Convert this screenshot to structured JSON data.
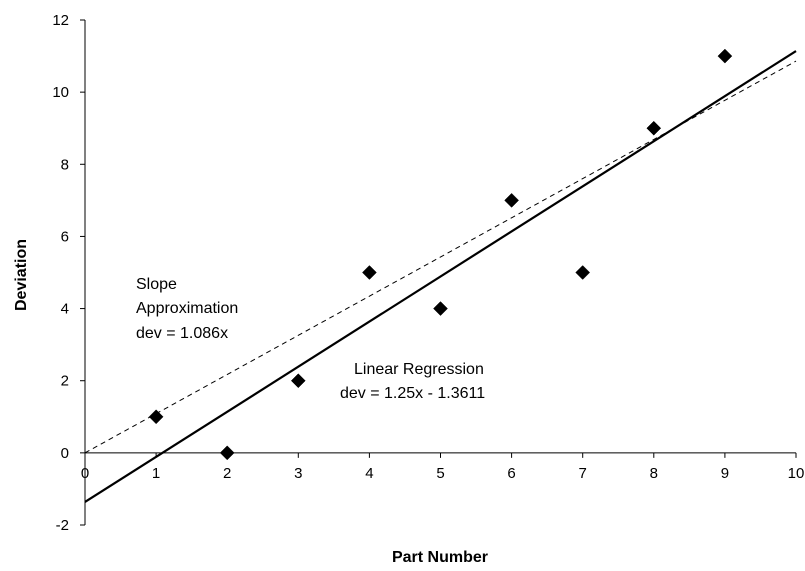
{
  "chart_data": {
    "type": "scatter",
    "title": "",
    "xlabel": "Part Number",
    "ylabel": "Deviation",
    "xlim": [
      0,
      10
    ],
    "ylim": [
      -2,
      12
    ],
    "x_ticks": [
      0,
      1,
      2,
      3,
      4,
      5,
      6,
      7,
      8,
      9,
      10
    ],
    "y_ticks": [
      -2,
      0,
      2,
      4,
      6,
      8,
      10,
      12
    ],
    "grid": false,
    "legend": "none",
    "series": [
      {
        "marker": "diamond",
        "color": "#000000",
        "x": [
          1,
          2,
          3,
          4,
          5,
          6,
          7,
          8,
          9
        ],
        "y": [
          1,
          0,
          2,
          5,
          4,
          7,
          5,
          9,
          11
        ]
      }
    ],
    "lines": [
      {
        "style": "solid",
        "color": "#000000",
        "slope": 1.25,
        "intercept": -1.3611,
        "x_range": [
          0,
          10
        ]
      },
      {
        "style": "dashed",
        "color": "#000000",
        "slope": 1.086,
        "intercept": 0,
        "x_range": [
          0,
          10
        ]
      }
    ],
    "annotations": {
      "slope": [
        "Slope",
        "Approximation",
        "dev = 1.086x"
      ],
      "regression": [
        "Linear Regression",
        "dev = 1.25x - 1.3611"
      ]
    }
  }
}
